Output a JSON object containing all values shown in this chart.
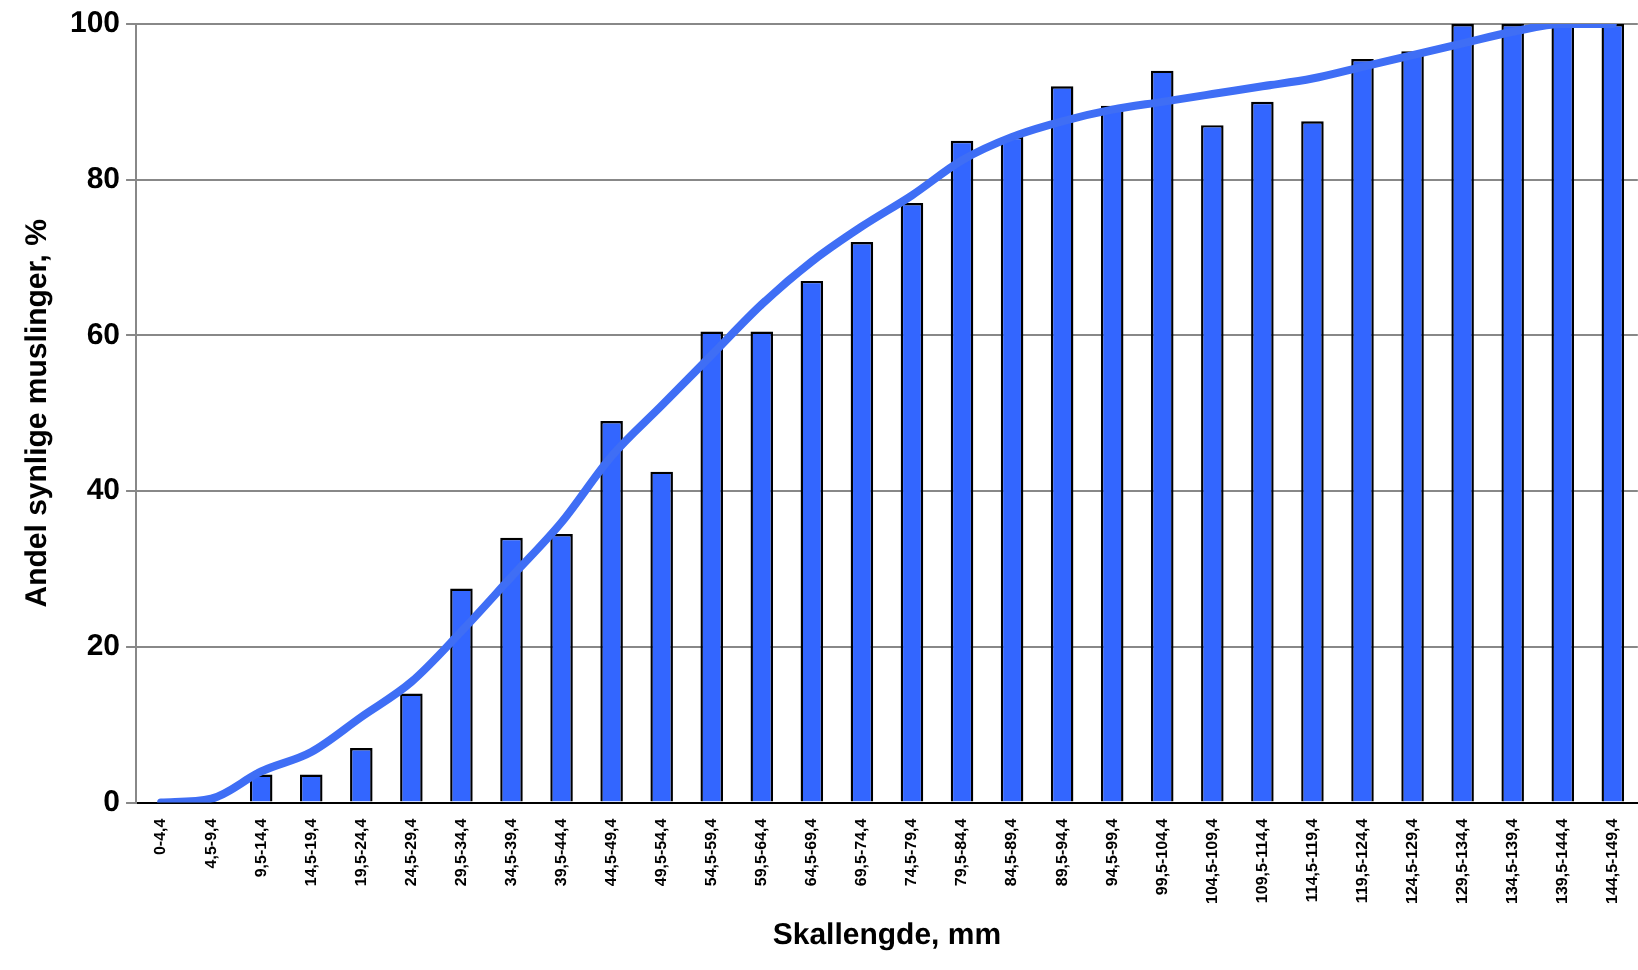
{
  "chart_data": {
    "type": "bar",
    "xlabel": "Skallengde, mm",
    "ylabel": "Andel synlige muslinger, %",
    "categories": [
      "0-4,4",
      "4,5-9,4",
      "9,5-14,4",
      "14,5-19,4",
      "19,5-24,4",
      "24,5-29,4",
      "29,5-34,4",
      "34,5-39,4",
      "39,5-44,4",
      "44,5-49,4",
      "49,5-54,4",
      "54,5-59,4",
      "59,5-64,4",
      "64,5-69,4",
      "69,5-74,4",
      "74,5-79,4",
      "79,5-84,4",
      "84,5-89,4",
      "89,5-94,4",
      "94,5-99,4",
      "99,5-104,4",
      "104,5-109,4",
      "109,5-114,4",
      "114,5-119,4",
      "119,5-124,4",
      "124,5-129,4",
      "129,5-134,4",
      "134,5-139,4",
      "139,5-144,4",
      "144,5-149,4"
    ],
    "series": [
      {
        "color": "#3366ff",
        "values": [
          0,
          0,
          3.6,
          3.6,
          7,
          14,
          27.5,
          34,
          34.5,
          49,
          42.5,
          60.5,
          60.5,
          67,
          72,
          77,
          85,
          85.5,
          92,
          89.5,
          94,
          87,
          90,
          87.5,
          95.5,
          96.5,
          100,
          100,
          100,
          100
        ]
      },
      {
        "type": "line",
        "color": "#3f6ef5",
        "values": [
          0,
          0.5,
          4,
          6.5,
          11,
          15.5,
          22,
          29,
          36,
          44.5,
          51,
          57.5,
          64,
          69.5,
          74,
          78,
          82.5,
          85.5,
          87.5,
          89,
          90,
          91,
          92,
          93,
          94.5,
          96,
          97.5,
          99,
          100,
          100
        ]
      }
    ],
    "ylim": [
      0,
      100
    ],
    "yticks": [
      0,
      20,
      40,
      60,
      80,
      100
    ],
    "grid": "y",
    "marker": "none",
    "line_style": "solid"
  }
}
